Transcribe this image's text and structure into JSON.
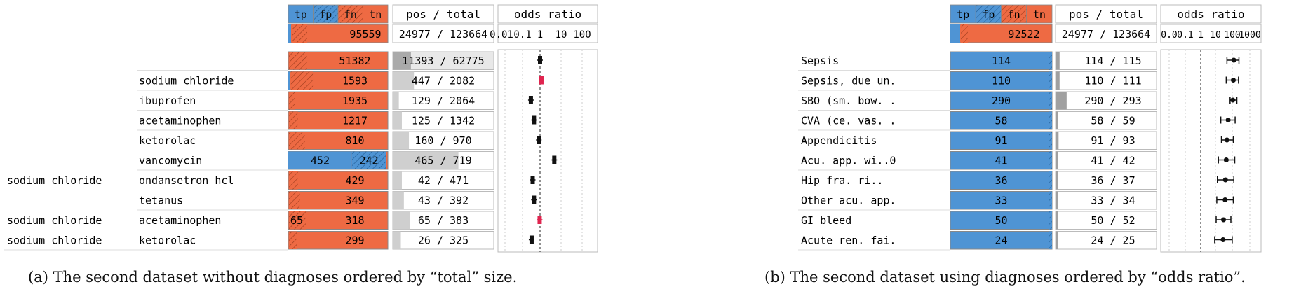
{
  "colors": {
    "tp": "#4f94d4",
    "fp": "#4f94d4",
    "fn": "#ee6a43",
    "tn": "#ee6a43",
    "gray": "#c8c8c8",
    "highlight": "#e0244f",
    "text": "#111111"
  },
  "panels": [
    {
      "id": "a",
      "header": {
        "conf_labels": [
          "tp",
          "fp",
          "fn",
          "tn"
        ],
        "pos_total_title": "pos / total",
        "odds_title": "odds ratio",
        "tick_labels": [
          "0.01",
          "0.1",
          "1",
          "10",
          "100"
        ],
        "summary_tn": "95559",
        "summary_pos_total": "24977 / 123664"
      },
      "rows": [
        {
          "left": "",
          "mid": "",
          "tp": "",
          "tn": "51382",
          "pos": "11393 / 62775",
          "tp_frac": 0.0,
          "fp_frac": 0.0,
          "fn_frac": 0.18,
          "pos_frac": 0.18,
          "or": 1.0,
          "gray": true,
          "highlight": false
        },
        {
          "left": "",
          "mid": "sodium chloride",
          "tp": "",
          "tn": "1593",
          "pos": "447 / 2082",
          "tp_frac": 0.02,
          "fp_frac": 0.0,
          "fn_frac": 0.22,
          "pos_frac": 0.21,
          "or": 1.2,
          "gray": false,
          "highlight": true
        },
        {
          "left": "",
          "mid": "ibuprofen",
          "tp": "",
          "tn": "1935",
          "pos": "129 / 2064",
          "tp_frac": 0.0,
          "fp_frac": 0.0,
          "fn_frac": 0.06,
          "pos_frac": 0.06,
          "or": 0.3,
          "gray": false,
          "highlight": false
        },
        {
          "left": "",
          "mid": "acetaminophen",
          "tp": "",
          "tn": "1217",
          "pos": "125 / 1342",
          "tp_frac": 0.0,
          "fp_frac": 0.0,
          "fn_frac": 0.09,
          "pos_frac": 0.09,
          "or": 0.45,
          "gray": false,
          "highlight": false
        },
        {
          "left": "",
          "mid": "ketorolac",
          "tp": "",
          "tn": "810",
          "pos": "160 / 970",
          "tp_frac": 0.0,
          "fp_frac": 0.0,
          "fn_frac": 0.16,
          "pos_frac": 0.16,
          "or": 0.85,
          "gray": false,
          "highlight": false
        },
        {
          "left": "",
          "mid": "vancomycin",
          "tp": "452",
          "tn": "242",
          "pos": "465 / 719",
          "tp_frac": 0.64,
          "fp_frac": 0.34,
          "fn_frac": 0.0,
          "pos_frac": 0.65,
          "or": 6.5,
          "gray": false,
          "highlight": false
        },
        {
          "left": "sodium chloride",
          "mid": "ondansetron hcl",
          "tp": "",
          "tn": "429",
          "pos": "42 / 471",
          "tp_frac": 0.0,
          "fp_frac": 0.0,
          "fn_frac": 0.09,
          "pos_frac": 0.09,
          "or": 0.38,
          "gray": false,
          "highlight": false
        },
        {
          "left": "",
          "mid": "tetanus",
          "tp": "",
          "tn": "349",
          "pos": "43 / 392",
          "tp_frac": 0.0,
          "fp_frac": 0.0,
          "fn_frac": 0.11,
          "pos_frac": 0.11,
          "or": 0.45,
          "gray": false,
          "highlight": false
        },
        {
          "left": "sodium chloride",
          "mid": "acetaminophen",
          "tp": "",
          "tn": "318",
          "pos": "65 / 383",
          "tp_frac": 0.0,
          "fp_frac": 0.0,
          "fn_frac": 0.17,
          "pos_frac": 0.17,
          "or": 0.95,
          "gray": false,
          "highlight": true,
          "fn_label": "65"
        },
        {
          "left": "sodium chloride",
          "mid": "ketorolac",
          "tp": "",
          "tn": "299",
          "pos": "26 / 325",
          "tp_frac": 0.0,
          "fp_frac": 0.0,
          "fn_frac": 0.08,
          "pos_frac": 0.08,
          "or": 0.33,
          "gray": false,
          "highlight": false
        }
      ]
    },
    {
      "id": "b",
      "header": {
        "conf_labels": [
          "tp",
          "fp",
          "fn",
          "tn"
        ],
        "pos_total_title": "pos / total",
        "odds_title": "odds ratio",
        "tick_labels": [
          "0.0",
          "0.1",
          "1",
          "10",
          "100",
          "1000"
        ],
        "summary_tn": "92522",
        "summary_pos_total": "24977 / 123664"
      },
      "rows": [
        {
          "left": "Sepsis",
          "tp": "114",
          "pos": "114 / 115",
          "pos_frac": 0.04,
          "or_lo": 50,
          "or_hi": 300,
          "or": 140
        },
        {
          "left": "Sepsis, due un.",
          "tp": "110",
          "pos": "110 / 111",
          "pos_frac": 0.04,
          "or_lo": 45,
          "or_hi": 280,
          "or": 130
        },
        {
          "left": "SBO (sm. bow. .",
          "tp": "290",
          "pos": "290 / 293",
          "pos_frac": 0.11,
          "or_lo": 80,
          "or_hi": 220,
          "or": 120
        },
        {
          "left": "CVA (ce. vas. .",
          "tp": "58",
          "pos": "58 / 59",
          "pos_frac": 0.02,
          "or_lo": 20,
          "or_hi": 170,
          "or": 60
        },
        {
          "left": "Appendicitis",
          "tp": "91",
          "pos": "91 / 93",
          "pos_frac": 0.03,
          "or_lo": 22,
          "or_hi": 130,
          "or": 50
        },
        {
          "left": "Acu. app. wi..0",
          "tp": "41",
          "pos": "41 / 42",
          "pos_frac": 0.02,
          "or_lo": 14,
          "or_hi": 160,
          "or": 45
        },
        {
          "left": "Hip fra. ri..",
          "tp": "36",
          "pos": "36 / 37",
          "pos_frac": 0.02,
          "or_lo": 12,
          "or_hi": 140,
          "or": 40
        },
        {
          "left": "Other acu. app.",
          "tp": "33",
          "pos": "33 / 34",
          "pos_frac": 0.02,
          "or_lo": 11,
          "or_hi": 130,
          "or": 38
        },
        {
          "left": "GI bleed",
          "tp": "50",
          "pos": "50 / 52",
          "pos_frac": 0.02,
          "or_lo": 10,
          "or_hi": 90,
          "or": 30
        },
        {
          "left": "Acute ren. fai.",
          "tp": "24",
          "pos": "24 / 25",
          "pos_frac": 0.01,
          "or_lo": 8,
          "or_hi": 110,
          "or": 28
        }
      ]
    }
  ],
  "captions": {
    "a": "(a)  The second dataset without diagnoses ordered by “total” size.",
    "b": "(b)  The second dataset using diagnoses ordered by “odds ratio”."
  }
}
